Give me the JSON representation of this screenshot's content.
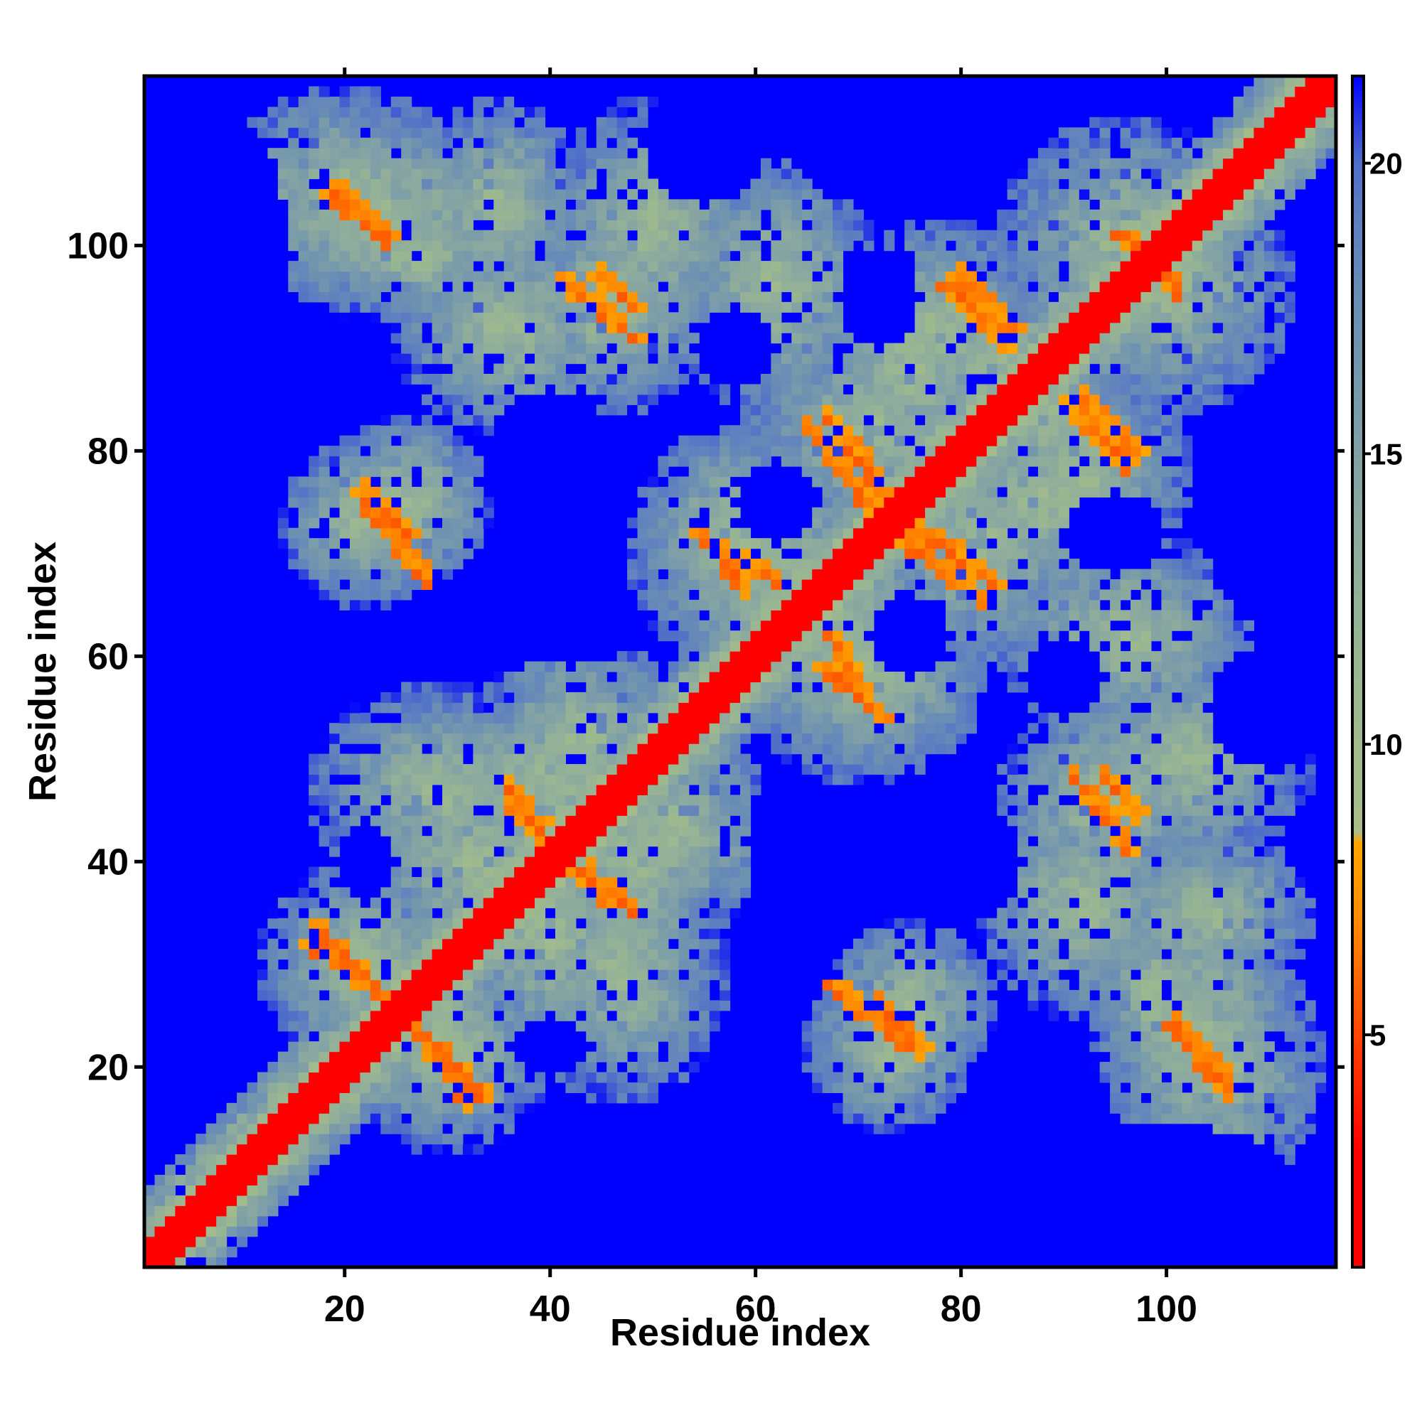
{
  "chart_data": {
    "type": "heatmap",
    "title": "",
    "xlabel": "Residue index",
    "ylabel": "Residue index",
    "n_residues": 116,
    "xlim": [
      0.5,
      116.5
    ],
    "ylim": [
      0.5,
      116.5
    ],
    "x_ticks": [
      20,
      40,
      60,
      80,
      100
    ],
    "y_ticks": [
      20,
      40,
      60,
      80,
      100
    ],
    "grid": false,
    "legend": "colorbar-right",
    "colorbar": {
      "range": [
        1,
        21.5
      ],
      "ticks": [
        5,
        10,
        15,
        20
      ],
      "stops": [
        {
          "value": 1,
          "color": "#ff0000"
        },
        {
          "value": 3,
          "color": "#ff0000"
        },
        {
          "value": 5,
          "color": "#ff4500"
        },
        {
          "value": 7,
          "color": "#ff8c00"
        },
        {
          "value": 8.3,
          "color": "#ffa500"
        },
        {
          "value": 8.5,
          "color": "#a9bc8a"
        },
        {
          "value": 11,
          "color": "#9cb890"
        },
        {
          "value": 14,
          "color": "#8aa8a0"
        },
        {
          "value": 17,
          "color": "#6f93b0"
        },
        {
          "value": 19,
          "color": "#5f7fc0"
        },
        {
          "value": 20,
          "color": "#4f6fc8"
        },
        {
          "value": 21.5,
          "color": "#0000ff"
        }
      ]
    },
    "background_value": 21.5,
    "diagonal_band": {
      "halfwidth": 2,
      "value": 1.5
    },
    "near_diagonal_halo": {
      "halfwidth": 7,
      "mid_value": 8
    },
    "contact_blobs": [
      {
        "i": 24,
        "j": 103,
        "ri": 14,
        "rj": 10
      },
      {
        "i": 33,
        "j": 40,
        "ri": 12,
        "rj": 10
      },
      {
        "i": 36,
        "j": 92,
        "ri": 11,
        "rj": 10
      },
      {
        "i": 48,
        "j": 40,
        "ri": 8,
        "rj": 18
      },
      {
        "i": 26,
        "j": 75,
        "ri": 8,
        "rj": 8
      },
      {
        "i": 22,
        "j": 30,
        "ri": 10,
        "rj": 10
      },
      {
        "i": 43,
        "j": 52,
        "ri": 10,
        "rj": 10
      },
      {
        "i": 47,
        "j": 29,
        "ri": 10,
        "rj": 12
      },
      {
        "i": 50,
        "j": 102,
        "ri": 10,
        "rj": 12
      },
      {
        "i": 57,
        "j": 72,
        "ri": 8,
        "rj": 10
      },
      {
        "i": 63,
        "j": 66,
        "ri": 10,
        "rj": 12
      },
      {
        "i": 70,
        "j": 60,
        "ri": 12,
        "rj": 12
      },
      {
        "i": 75,
        "j": 88,
        "ri": 10,
        "rj": 12
      },
      {
        "i": 73,
        "j": 22,
        "ri": 8,
        "rj": 8
      },
      {
        "i": 82,
        "j": 71,
        "ri": 10,
        "rj": 12
      },
      {
        "i": 88,
        "j": 84,
        "ri": 8,
        "rj": 10
      },
      {
        "i": 92,
        "j": 78,
        "ri": 10,
        "rj": 10
      },
      {
        "i": 94,
        "j": 46,
        "ri": 10,
        "rj": 10
      },
      {
        "i": 96,
        "j": 62,
        "ri": 12,
        "rj": 10
      },
      {
        "i": 100,
        "j": 96,
        "ri": 12,
        "rj": 12
      },
      {
        "i": 104,
        "j": 35,
        "ri": 10,
        "rj": 8
      },
      {
        "i": 105,
        "j": 20,
        "ri": 10,
        "rj": 12
      },
      {
        "i": 99,
        "j": 27,
        "ri": 6,
        "rj": 10
      }
    ],
    "contact_lines": [
      {
        "from": [
          17,
          33
        ],
        "to": [
          24,
          27
        ]
      },
      {
        "from": [
          27,
          23
        ],
        "to": [
          32,
          16
        ]
      },
      {
        "from": [
          36,
          45
        ],
        "to": [
          40,
          41
        ]
      },
      {
        "from": [
          43,
          39
        ],
        "to": [
          48,
          35
        ]
      },
      {
        "from": [
          44,
          97
        ],
        "to": [
          48,
          94
        ]
      },
      {
        "from": [
          55,
          71
        ],
        "to": [
          62,
          67
        ]
      },
      {
        "from": [
          66,
          59
        ],
        "to": [
          72,
          54
        ]
      },
      {
        "from": [
          67,
          83
        ],
        "to": [
          72,
          76
        ]
      },
      {
        "from": [
          73,
          72
        ],
        "to": [
          82,
          65
        ]
      },
      {
        "from": [
          79,
          97
        ],
        "to": [
          85,
          91
        ]
      },
      {
        "from": [
          90,
          84
        ],
        "to": [
          96,
          78
        ]
      },
      {
        "from": [
          91,
          48
        ],
        "to": [
          96,
          41
        ]
      },
      {
        "from": [
          100,
          24
        ],
        "to": [
          106,
          17
        ]
      },
      {
        "from": [
          95,
          101
        ],
        "to": [
          100,
          97
        ]
      },
      {
        "from": [
          18,
          106
        ],
        "to": [
          24,
          100
        ]
      },
      {
        "from": [
          21,
          76
        ],
        "to": [
          26,
          71
        ]
      },
      {
        "from": [
          67,
          28
        ],
        "to": [
          74,
          22
        ]
      }
    ],
    "empty_regions": [
      {
        "i": 61,
        "j": 20,
        "ri": 3,
        "rj": 14
      },
      {
        "i": 62,
        "j": 36,
        "ri": 3,
        "rj": 14
      },
      {
        "i": 40,
        "j": 22,
        "ri": 4,
        "rj": 3
      },
      {
        "i": 75,
        "j": 62,
        "ri": 4,
        "rj": 4
      },
      {
        "i": 80,
        "j": 80,
        "ri": 4,
        "rj": 4
      },
      {
        "i": 95,
        "j": 72,
        "ri": 5,
        "rj": 4
      },
      {
        "i": 90,
        "j": 58,
        "ri": 4,
        "rj": 4
      },
      {
        "i": 14,
        "j": 60,
        "ri": 8,
        "rj": 5
      },
      {
        "i": 110,
        "j": 70,
        "ri": 6,
        "rj": 6
      },
      {
        "i": 110,
        "j": 55,
        "ri": 6,
        "rj": 6
      },
      {
        "i": 9,
        "j": 95,
        "ri": 6,
        "rj": 18
      },
      {
        "i": 80,
        "j": 40,
        "ri": 6,
        "rj": 6
      }
    ]
  }
}
